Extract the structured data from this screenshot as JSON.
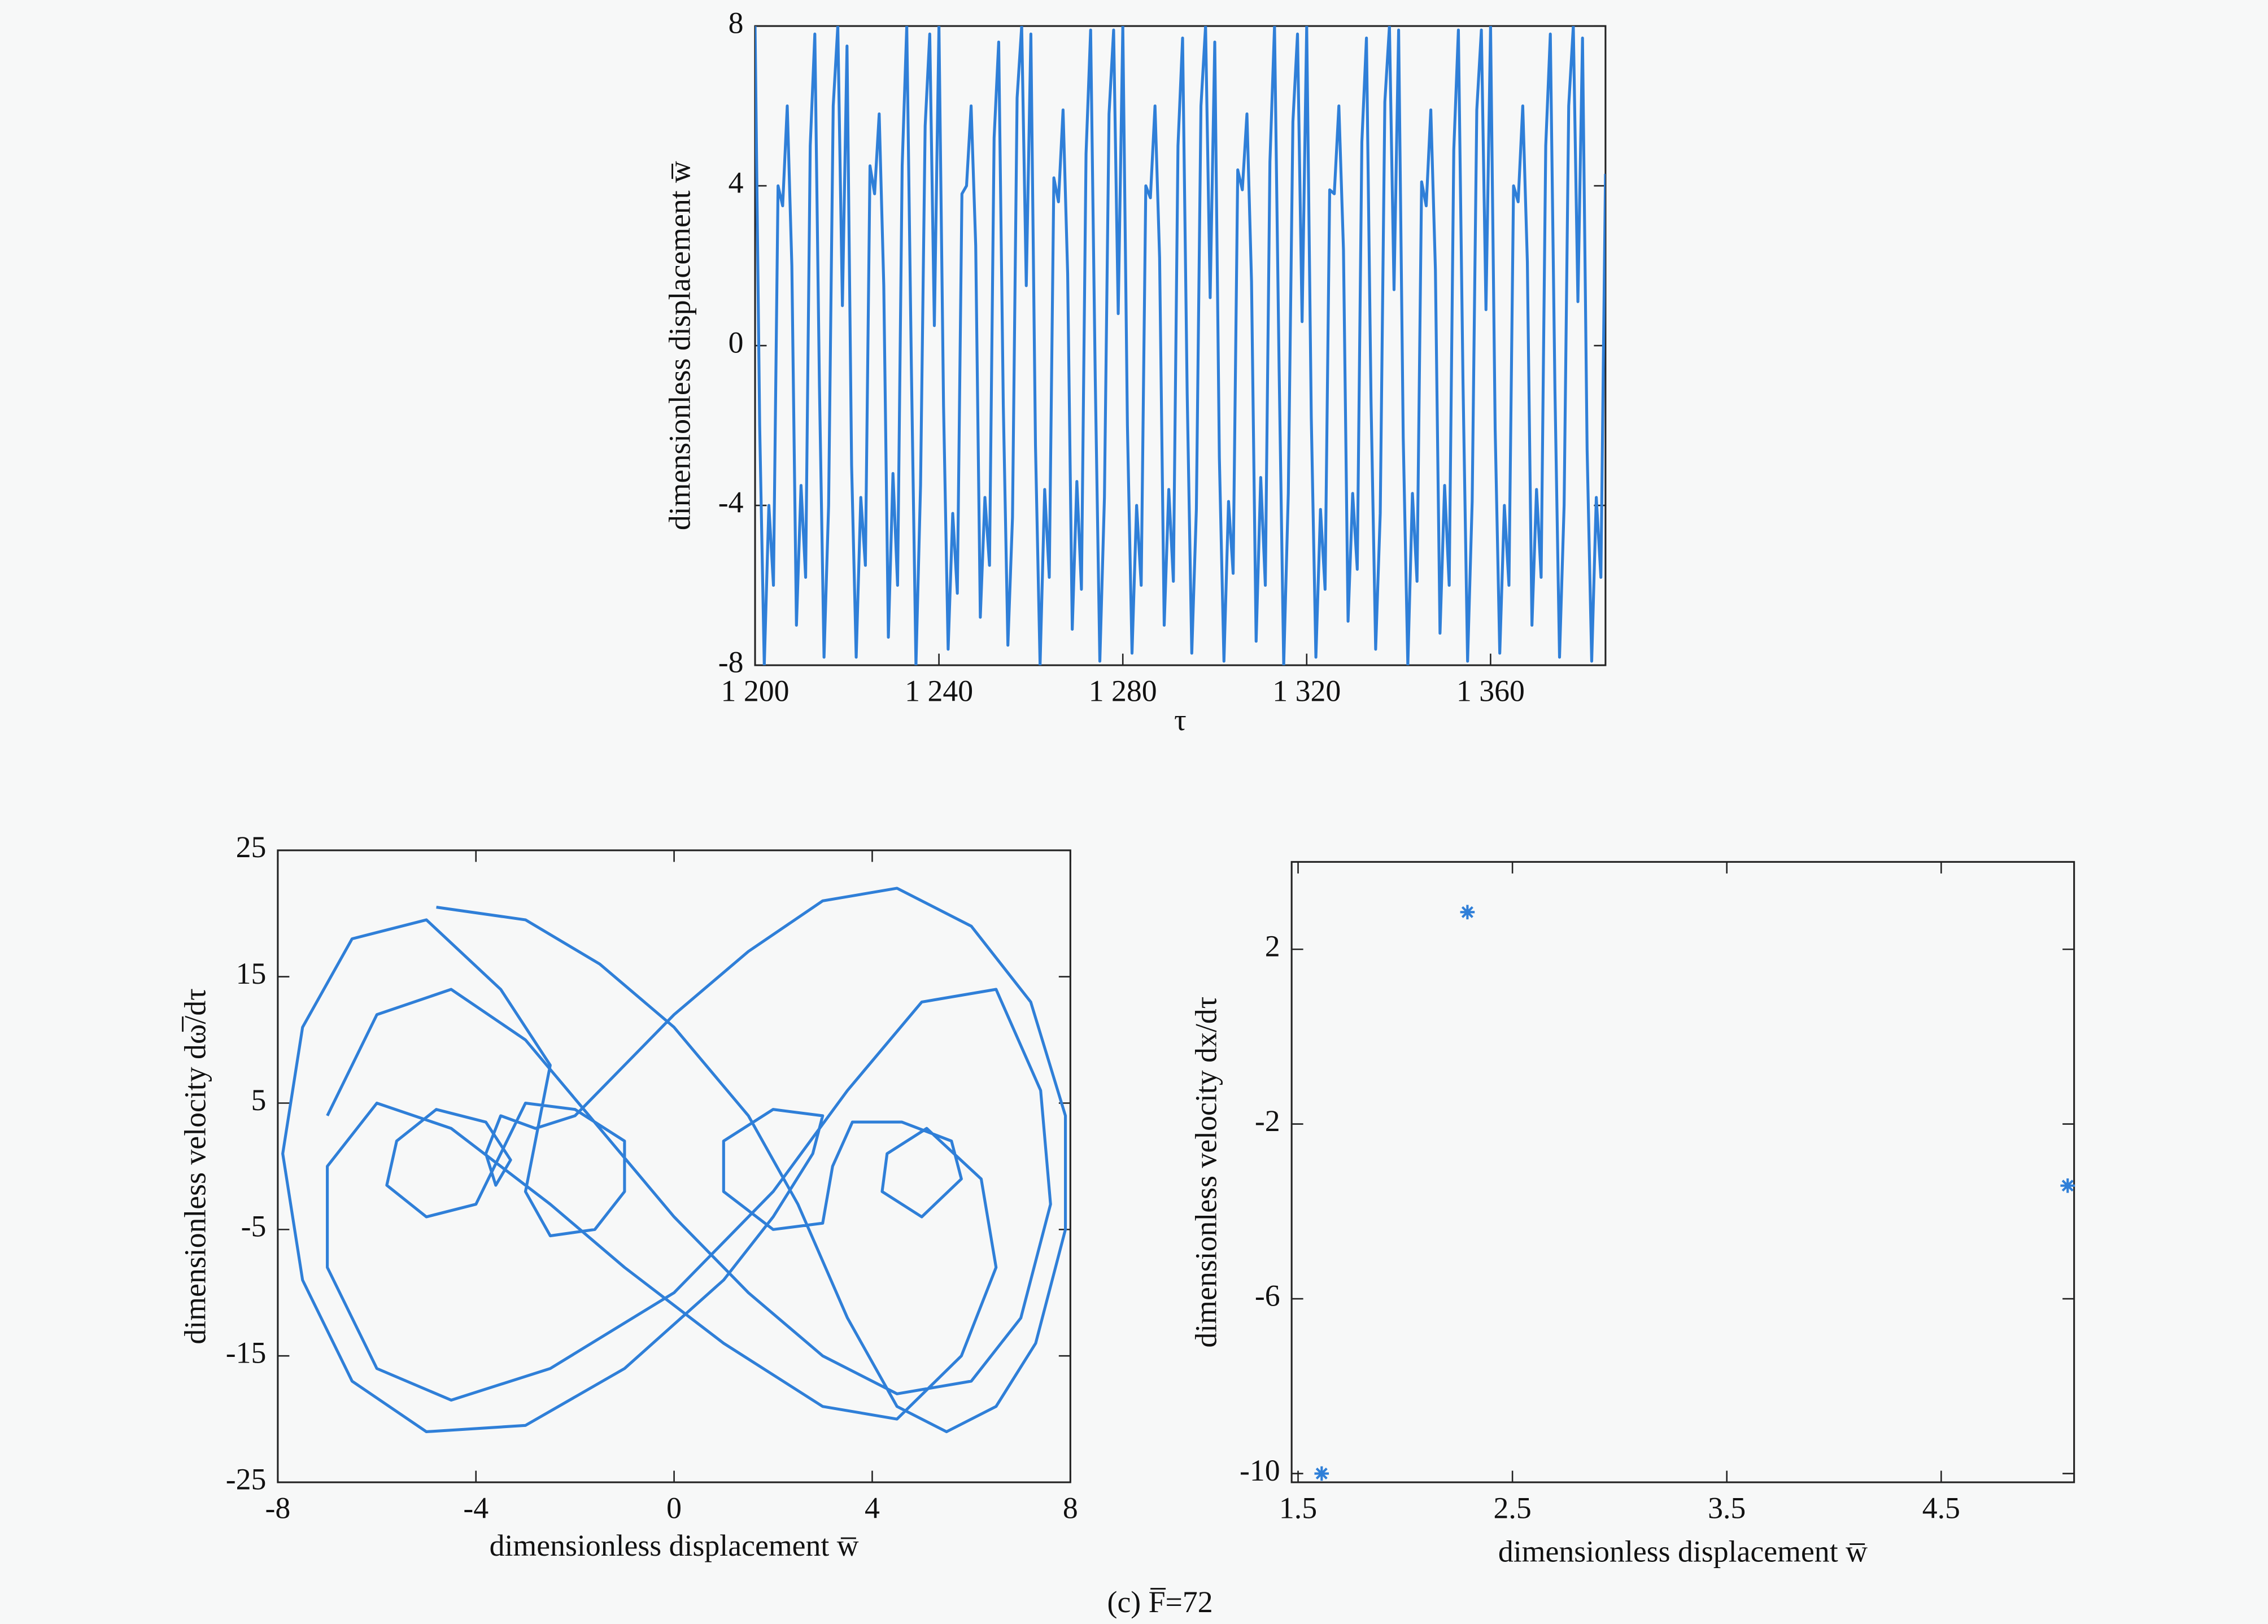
{
  "caption": "(c) F̅=72",
  "chart_data": [
    {
      "type": "line",
      "xlabel": "τ",
      "ylabel": "dimensionless displacement w̅",
      "xlim": [
        1200,
        1385
      ],
      "ylim": [
        -8,
        8
      ],
      "xticks": [
        {
          "value": 1200,
          "label": "1 200"
        },
        {
          "value": 1240,
          "label": "1 240"
        },
        {
          "value": 1280,
          "label": "1 280"
        },
        {
          "value": 1320,
          "label": "1 320"
        },
        {
          "value": 1360,
          "label": "1 360"
        }
      ],
      "yticks": [
        -8,
        -4,
        0,
        4,
        8
      ],
      "x": [
        1200,
        1201,
        1202,
        1203,
        1204,
        1205,
        1206,
        1207,
        1208,
        1209,
        1210,
        1211,
        1212,
        1213,
        1214,
        1215,
        1216,
        1217,
        1218,
        1219,
        1220,
        1221,
        1222,
        1223,
        1224,
        1225,
        1226,
        1227,
        1228,
        1229,
        1230,
        1231,
        1232,
        1233,
        1234,
        1235,
        1236,
        1237,
        1238,
        1239,
        1240,
        1241,
        1242,
        1243,
        1244,
        1245,
        1246,
        1247,
        1248,
        1249,
        1250,
        1251,
        1252,
        1253,
        1254,
        1255,
        1256,
        1257,
        1258,
        1259,
        1260,
        1261,
        1262,
        1263,
        1264,
        1265,
        1266,
        1267,
        1268,
        1269,
        1270,
        1271,
        1272,
        1273,
        1274,
        1275,
        1276,
        1277,
        1278,
        1279,
        1280,
        1281,
        1282,
        1283,
        1284,
        1285,
        1286,
        1287,
        1288,
        1289,
        1290,
        1291,
        1292,
        1293,
        1294,
        1295,
        1296,
        1297,
        1298,
        1299,
        1300,
        1301,
        1302,
        1303,
        1304,
        1305,
        1306,
        1307,
        1308,
        1309,
        1310,
        1311,
        1312,
        1313,
        1314,
        1315,
        1316,
        1317,
        1318,
        1319,
        1320,
        1321,
        1322,
        1323,
        1324,
        1325,
        1326,
        1327,
        1328,
        1329,
        1330,
        1331,
        1332,
        1333,
        1334,
        1335,
        1336,
        1337,
        1338,
        1339,
        1340,
        1341,
        1342,
        1343,
        1344,
        1345,
        1346,
        1347,
        1348,
        1349,
        1350,
        1351,
        1352,
        1353,
        1354,
        1355,
        1356,
        1357,
        1358,
        1359,
        1360,
        1361,
        1362,
        1363,
        1364,
        1365,
        1366,
        1367,
        1368,
        1369,
        1370,
        1371,
        1372,
        1373,
        1374,
        1375,
        1376,
        1377,
        1378,
        1379,
        1380,
        1381,
        1382,
        1383,
        1384,
        1385
      ],
      "series": [
        {
          "color": "#2f7fd8",
          "values": [
            8,
            -2,
            -8,
            -4,
            -6,
            4,
            3.5,
            6,
            2,
            -7,
            -3.5,
            -5.8,
            5,
            7.8,
            -1,
            -7.8,
            -4,
            6,
            8,
            1,
            7.5,
            -3,
            -7.8,
            -3.8,
            -5.5,
            4.5,
            3.8,
            5.8,
            1.5,
            -7.3,
            -3.2,
            -6,
            4.5,
            8,
            -0.5,
            -8,
            -3.5,
            5.5,
            7.8,
            0.5,
            8,
            -1.5,
            -7.6,
            -4.2,
            -6.2,
            3.8,
            4,
            6,
            2.5,
            -6.8,
            -3.8,
            -5.5,
            5.2,
            7.6,
            -1.5,
            -7.5,
            -4.3,
            6.2,
            8,
            1.5,
            7.8,
            -2.5,
            -8,
            -3.6,
            -5.8,
            4.2,
            3.6,
            5.9,
            1.8,
            -7.1,
            -3.4,
            -6.1,
            4.8,
            7.9,
            -0.8,
            -7.9,
            -3.8,
            5.8,
            7.9,
            0.8,
            8,
            -2,
            -7.7,
            -4,
            -6,
            4,
            3.7,
            6,
            2.2,
            -7,
            -3.6,
            -5.9,
            5,
            7.7,
            -1.2,
            -7.7,
            -4.1,
            6,
            8,
            1.2,
            7.6,
            -2.8,
            -7.9,
            -3.9,
            -5.7,
            4.4,
            3.9,
            5.8,
            1.6,
            -7.4,
            -3.3,
            -6,
            4.6,
            8,
            -0.6,
            -8,
            -3.7,
            5.6,
            7.8,
            0.6,
            8,
            -1.8,
            -7.8,
            -4.1,
            -6.1,
            3.9,
            3.8,
            6,
            2.4,
            -6.9,
            -3.7,
            -5.6,
            5.1,
            7.7,
            -1.4,
            -7.6,
            -4.2,
            6.1,
            8,
            1.4,
            7.9,
            -2.3,
            -8,
            -3.7,
            -5.9,
            4.1,
            3.5,
            5.9,
            1.9,
            -7.2,
            -3.5,
            -6,
            4.9,
            7.9,
            -0.9,
            -7.9,
            -3.9,
            5.9,
            7.9,
            0.9,
            8,
            -2.1,
            -7.7,
            -4,
            -6,
            4,
            3.6,
            6,
            2.1,
            -7,
            -3.6,
            -5.8,
            5,
            7.8,
            -1.1,
            -7.8,
            -4,
            6,
            8,
            1.1,
            7.7,
            -2.6,
            -7.9,
            -3.8,
            -5.8,
            4.3
          ]
        }
      ]
    },
    {
      "type": "line",
      "xlabel": "dimensionless displacement w̅",
      "ylabel": "dimensionless velocity dω̅/dτ",
      "xlim": [
        -8,
        8
      ],
      "ylim": [
        -25,
        25
      ],
      "xticks": [
        -8,
        -4,
        0,
        4,
        8
      ],
      "yticks": [
        -25,
        -15,
        -5,
        5,
        15,
        25
      ],
      "x": [
        -4.8,
        -3,
        -1.5,
        0,
        1.5,
        2.5,
        3.5,
        4.5,
        5.5,
        6.5,
        7.3,
        7.9,
        7.9,
        7.2,
        6,
        4.5,
        3,
        1.5,
        0,
        -1,
        -2,
        -2.8,
        -3.5,
        -3.8,
        -3.6,
        -3.3,
        -3.8,
        -4.8,
        -5.6,
        -5.8,
        -5,
        -4,
        -3.5,
        -3,
        -2,
        -1,
        -1,
        -1.6,
        -2.5,
        -3,
        -2.8,
        -2.5,
        -3.5,
        -5,
        -6.5,
        -7.5,
        -7.9,
        -7.5,
        -6.5,
        -5,
        -3,
        -1,
        1,
        2,
        2.8,
        3,
        2,
        1,
        1,
        2,
        3,
        3.2,
        3.6,
        4.6,
        5.6,
        5.8,
        5,
        4.2,
        4.3,
        5.1,
        6.2,
        6.5,
        5.8,
        4.5,
        3,
        1,
        -1,
        -2.5,
        -3.5,
        -4.5,
        -6,
        -7,
        -7,
        -6,
        -4.5,
        -2.5,
        0,
        2,
        3.5,
        5,
        6.5,
        7.4,
        7.6,
        7,
        6,
        4.5,
        3,
        1.5,
        0,
        -1.5,
        -3,
        -4.5,
        -6,
        -7
      ],
      "series": [
        {
          "color": "#2f7fd8",
          "values": [
            20.5,
            19.5,
            16,
            11,
            4,
            -3,
            -12,
            -19,
            -21,
            -19,
            -14,
            -5,
            4,
            13,
            19,
            22,
            21,
            17,
            12,
            8,
            4,
            3,
            4,
            1,
            -1.5,
            0.5,
            3.5,
            4.5,
            2,
            -1.5,
            -4,
            -3,
            1,
            5,
            4.5,
            2,
            -2,
            -5,
            -5.5,
            -2,
            2,
            8,
            14,
            19.5,
            18,
            11,
            1,
            -9,
            -17,
            -21,
            -20.5,
            -16,
            -9,
            -4,
            1,
            4,
            4.5,
            2,
            -2,
            -5,
            -4.5,
            0,
            3.5,
            3.5,
            2,
            -1,
            -4,
            -2,
            1,
            3,
            -1,
            -8,
            -15,
            -20,
            -19,
            -14,
            -8,
            -3,
            0,
            3,
            5,
            0,
            -8,
            -16,
            -18.5,
            -16,
            -10,
            -2,
            6,
            13,
            14,
            6,
            -3,
            -12,
            -17,
            -18,
            -15,
            -10,
            -4,
            3,
            10,
            14,
            12,
            4
          ]
        }
      ]
    },
    {
      "type": "scatter",
      "xlabel": "dimensionless displacement w̅",
      "ylabel": "dimensionless velocity dx/dτ",
      "xlim": [
        1.47,
        5.12
      ],
      "ylim": [
        -10.2,
        4
      ],
      "xticks": [
        1.5,
        2.5,
        3.5,
        4.5
      ],
      "yticks": [
        2,
        -2,
        -6,
        -10
      ],
      "x": [
        1.61,
        2.29,
        5.09
      ],
      "series": [
        {
          "color": "#2f7fd8",
          "values": [
            -10,
            2.85,
            -3.41
          ]
        }
      ]
    }
  ]
}
